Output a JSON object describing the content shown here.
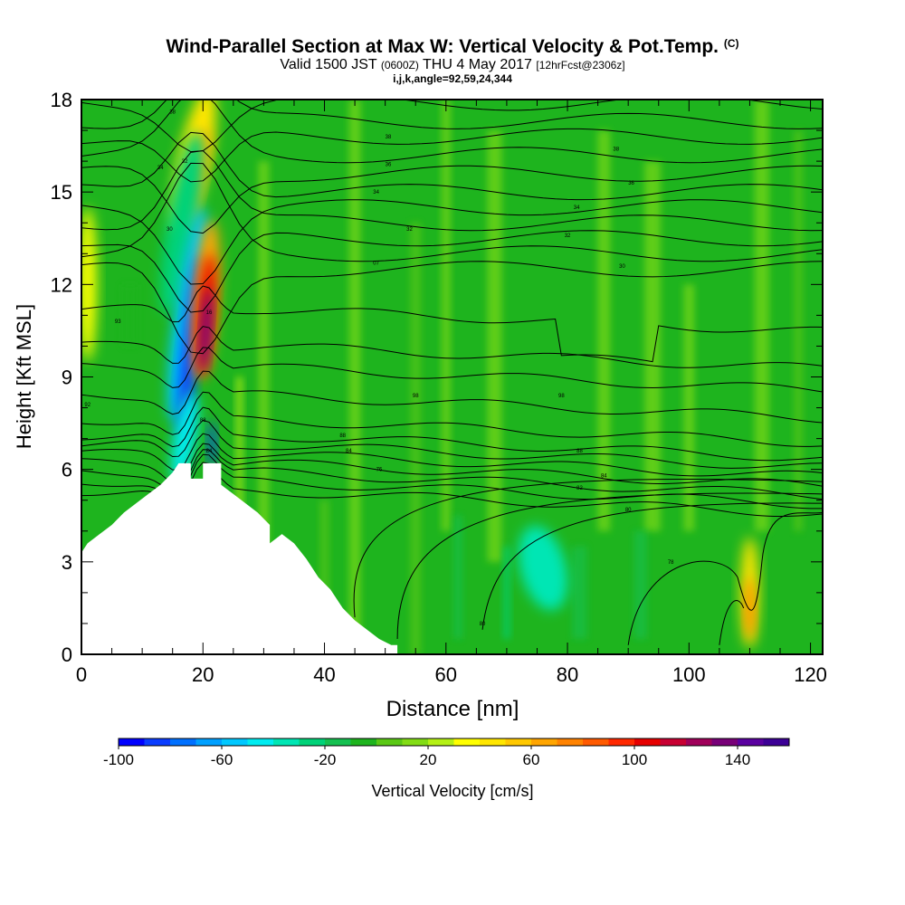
{
  "header": {
    "title": "Wind-Parallel Section at Max W: Vertical Velocity & Pot.Temp.",
    "copyright": "(C)",
    "valid_prefix": "Valid 1500 JST",
    "valid_z": "(0600Z)",
    "valid_date": "THU 4 May 2017",
    "forecast": "[12hrFcst@2306z]",
    "indices": "i,j,k,angle=92,59,24,344"
  },
  "chart_data": {
    "type": "heatmap",
    "title": "Wind-Parallel Section at Max W: Vertical Velocity & Pot.Temp.",
    "xlabel": "Distance [nm]",
    "ylabel": "Height [Kft MSL]",
    "xlim": [
      0,
      122
    ],
    "ylim": [
      0,
      18
    ],
    "x_ticks": [
      0,
      20,
      40,
      60,
      80,
      100,
      120
    ],
    "y_ticks": [
      0,
      3,
      6,
      9,
      12,
      15,
      18
    ],
    "colorbar": {
      "label": "Vertical Velocity [cm/s]",
      "min": -100,
      "max": 160,
      "step": 10,
      "tick_values": [
        -100,
        -60,
        -20,
        20,
        60,
        100,
        140
      ],
      "tick_labels": [
        "-100",
        "-60",
        "-20",
        "20",
        "60",
        "100",
        "140"
      ],
      "colors": [
        "#0000ff",
        "#0a3cff",
        "#0070ff",
        "#00a0ff",
        "#00c8ff",
        "#00ecf0",
        "#00e6b4",
        "#00d278",
        "#14c050",
        "#1eb41e",
        "#5ac814",
        "#82dc14",
        "#b4f014",
        "#ffff00",
        "#ffe600",
        "#ffc800",
        "#ffa500",
        "#ff8200",
        "#ff5a00",
        "#ff2800",
        "#e60000",
        "#c80032",
        "#a0005a",
        "#780078",
        "#5a00a0",
        "#3c0096"
      ]
    },
    "terrain_kft": [
      [
        0,
        3.3
      ],
      [
        1,
        3.6
      ],
      [
        3,
        3.9
      ],
      [
        5,
        4.2
      ],
      [
        7,
        4.6
      ],
      [
        9,
        4.9
      ],
      [
        11,
        5.2
      ],
      [
        13,
        5.5
      ],
      [
        15,
        5.9
      ],
      [
        16,
        6.2
      ],
      [
        18,
        6.2
      ],
      [
        18,
        5.7
      ],
      [
        20,
        5.7
      ],
      [
        20,
        6.2
      ],
      [
        23,
        6.2
      ],
      [
        23,
        5.5
      ],
      [
        25,
        5.2
      ],
      [
        27,
        4.9
      ],
      [
        29,
        4.6
      ],
      [
        31,
        4.2
      ],
      [
        31,
        3.6
      ],
      [
        33,
        3.9
      ],
      [
        35,
        3.6
      ],
      [
        37,
        3.1
      ],
      [
        39,
        2.5
      ],
      [
        41,
        2.1
      ],
      [
        43,
        1.5
      ],
      [
        45,
        1.1
      ],
      [
        47,
        0.8
      ],
      [
        49,
        0.5
      ],
      [
        51,
        0.3
      ],
      [
        52,
        0.3
      ]
    ],
    "vertical_velocity_features": [
      {
        "name": "mountain-wave-updraft",
        "x": 20.5,
        "y_range": [
          7.5,
          13.5
        ],
        "peak_cm_s": 150
      },
      {
        "name": "mountain-wave-downdraft",
        "x": 17.5,
        "y_range": [
          6.0,
          14.0
        ],
        "min_cm_s": -90
      },
      {
        "name": "upper-updraft-band",
        "x": 18.5,
        "y_range": [
          14.0,
          18.0
        ],
        "peak_cm_s": 50
      },
      {
        "name": "surface-updraft",
        "x": 110,
        "y_range": [
          0.5,
          3.8
        ],
        "peak_cm_s": 60
      },
      {
        "name": "upstream-updraft",
        "x": 1,
        "y_range": [
          10.0,
          14.0
        ],
        "peak_cm_s": 30
      },
      {
        "name": "lowlevel-subsidence",
        "x": 75,
        "y_range": [
          0.5,
          4.5
        ],
        "min_cm_s": -40
      }
    ],
    "isentrope_labels": [
      {
        "text": "38",
        "x": 15,
        "y": 17.6
      },
      {
        "text": "34",
        "x": 13,
        "y": 15.8
      },
      {
        "text": "32",
        "x": 17,
        "y": 16.0
      },
      {
        "text": "30",
        "x": 14.5,
        "y": 13.8
      },
      {
        "text": "16",
        "x": 21,
        "y": 11.1
      },
      {
        "text": "93",
        "x": 6,
        "y": 10.8
      },
      {
        "text": "92",
        "x": 1,
        "y": 8.1
      },
      {
        "text": "88",
        "x": 20,
        "y": 7.6
      },
      {
        "text": "84",
        "x": 21,
        "y": 6.6
      },
      {
        "text": "38",
        "x": 50.5,
        "y": 16.8
      },
      {
        "text": "36",
        "x": 50.5,
        "y": 15.9
      },
      {
        "text": "34",
        "x": 48.5,
        "y": 15.0
      },
      {
        "text": "32",
        "x": 54,
        "y": 13.8
      },
      {
        "text": "07",
        "x": 48.5,
        "y": 12.7
      },
      {
        "text": "98",
        "x": 55,
        "y": 8.4
      },
      {
        "text": "88",
        "x": 43,
        "y": 7.1
      },
      {
        "text": "84",
        "x": 44,
        "y": 6.6
      },
      {
        "text": "76",
        "x": 49,
        "y": 6.0
      },
      {
        "text": "38",
        "x": 88,
        "y": 16.4
      },
      {
        "text": "36",
        "x": 90.5,
        "y": 15.3
      },
      {
        "text": "34",
        "x": 81.5,
        "y": 14.5
      },
      {
        "text": "32",
        "x": 80,
        "y": 13.6
      },
      {
        "text": "30",
        "x": 89,
        "y": 12.6
      },
      {
        "text": "98",
        "x": 79,
        "y": 8.4
      },
      {
        "text": "88",
        "x": 82,
        "y": 6.6
      },
      {
        "text": "84",
        "x": 86,
        "y": 5.8
      },
      {
        "text": "82",
        "x": 82,
        "y": 5.4
      },
      {
        "text": "80",
        "x": 90,
        "y": 4.7
      },
      {
        "text": "78",
        "x": 97,
        "y": 3.0
      },
      {
        "text": "80",
        "x": 66,
        "y": 1.0
      }
    ]
  },
  "palette": {
    "background_green": "#1eb41e",
    "terrain": "#ffffff",
    "contour": "#000000"
  }
}
